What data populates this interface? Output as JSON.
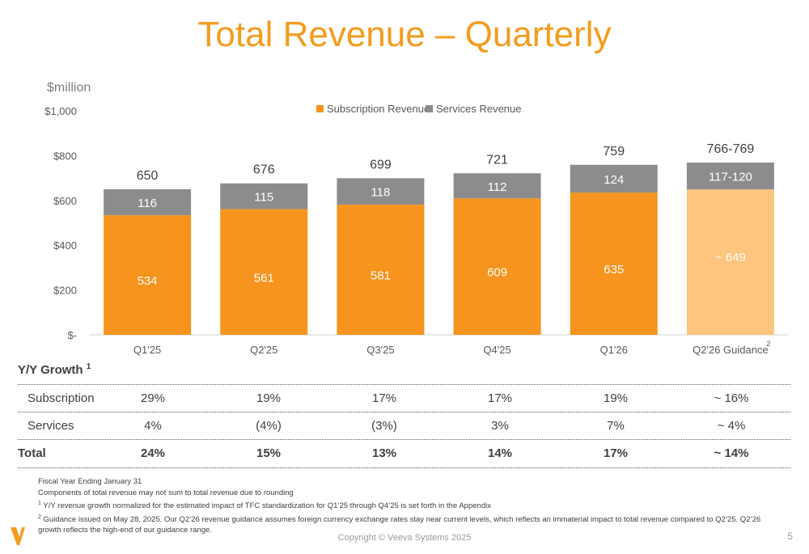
{
  "title": "Total Revenue – Quarterly",
  "unit_label": "$million",
  "chart_data": {
    "type": "bar",
    "stacked": true,
    "categories": [
      "Q1'25",
      "Q2'25",
      "Q3'25",
      "Q4'25",
      "Q1'26",
      "Q2'26 Guidance"
    ],
    "category_superscripts": [
      "",
      "",
      "",
      "",
      "",
      "2"
    ],
    "series": [
      {
        "name": "Subscription Revenue",
        "values": [
          534,
          561,
          581,
          609,
          635,
          649
        ],
        "labels": [
          "534",
          "561",
          "581",
          "609",
          "635",
          "~ 649"
        ],
        "color": "#f7941d",
        "guidance_color": "#fdc57e"
      },
      {
        "name": "Services Revenue",
        "values": [
          116,
          115,
          118,
          112,
          124,
          120
        ],
        "labels": [
          "116",
          "115",
          "118",
          "112",
          "124",
          "117-120"
        ],
        "color": "#8c8c8c"
      }
    ],
    "totals": [
      "650",
      "676",
      "699",
      "721",
      "759",
      "766-769"
    ],
    "y_ticks": [
      {
        "value": 0,
        "label": "$-"
      },
      {
        "value": 200,
        "label": "$200"
      },
      {
        "value": 400,
        "label": "$400"
      },
      {
        "value": 600,
        "label": "$600"
      },
      {
        "value": 800,
        "label": "$800"
      },
      {
        "value": 1000,
        "label": "$1,000"
      }
    ],
    "ylim": [
      0,
      1000
    ],
    "grid": false,
    "legend_position": "top-center"
  },
  "growth": {
    "title": "Y/Y Growth",
    "title_sup": "1",
    "rows": [
      {
        "label": "Subscription",
        "values": [
          "29%",
          "19%",
          "17%",
          "17%",
          "19%",
          "~ 16%"
        ]
      },
      {
        "label": "Services",
        "values": [
          "4%",
          "(4%)",
          "(3%)",
          "3%",
          "7%",
          "~ 4%"
        ]
      },
      {
        "label": "Total",
        "values": [
          "24%",
          "15%",
          "13%",
          "14%",
          "17%",
          "~ 14%"
        ]
      }
    ]
  },
  "footnotes": {
    "line1": "Fiscal Year Ending January 31",
    "line2": "Components of total revenue may not sum to total revenue due to rounding",
    "note1_sup": "1",
    "note1": " Y/Y revenue growth normalized for the estimated impact of TFC standardization for Q1’25 through Q4’25 is set forth in the Appendix",
    "note2_sup": "2",
    "note2": " Guidance issued on May 28, 2025. Our Q2’26 revenue guidance assumes foreign currency exchange rates stay near current levels, which reflects an immaterial impact to total revenue compared to Q2’25. Q2’26 growth reflects the high-end of our guidance range."
  },
  "copyright": "Copyright © Veeva Systems 2025",
  "page_number": "5",
  "colors": {
    "accent": "#f39c1f",
    "text": "#404040"
  }
}
